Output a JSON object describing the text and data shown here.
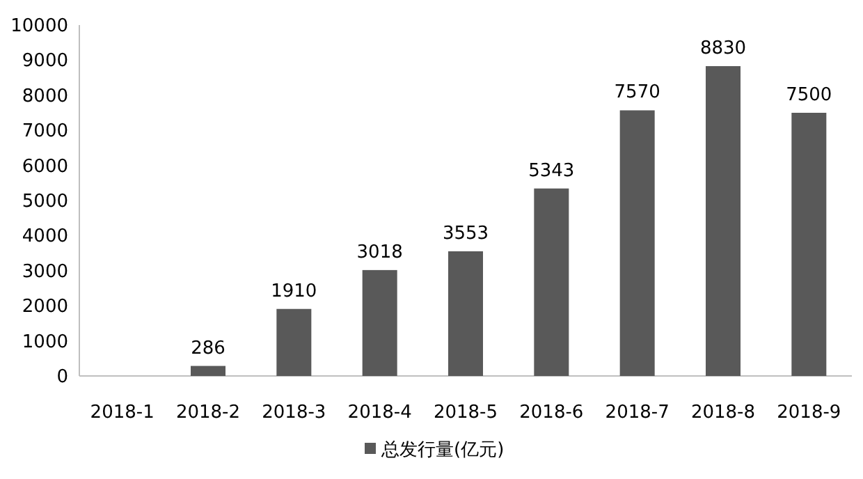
{
  "chart_data": {
    "type": "bar",
    "categories": [
      "2018-1",
      "2018-2",
      "2018-3",
      "2018-4",
      "2018-5",
      "2018-6",
      "2018-7",
      "2018-8",
      "2018-9"
    ],
    "series": [
      {
        "name": "总发行量(亿元)",
        "color": "#595959",
        "values": [
          null,
          286,
          1910,
          3018,
          3553,
          5343,
          7570,
          8830,
          7500
        ],
        "value_labels": [
          null,
          "286",
          "1910",
          "3018",
          "3553",
          "5343",
          "7570",
          "8830",
          "7500"
        ]
      }
    ],
    "ylim": [
      0,
      10000
    ],
    "yticks": [
      0,
      1000,
      2000,
      3000,
      4000,
      5000,
      6000,
      7000,
      8000,
      9000,
      10000
    ],
    "legend": "bottom",
    "grid": false
  }
}
